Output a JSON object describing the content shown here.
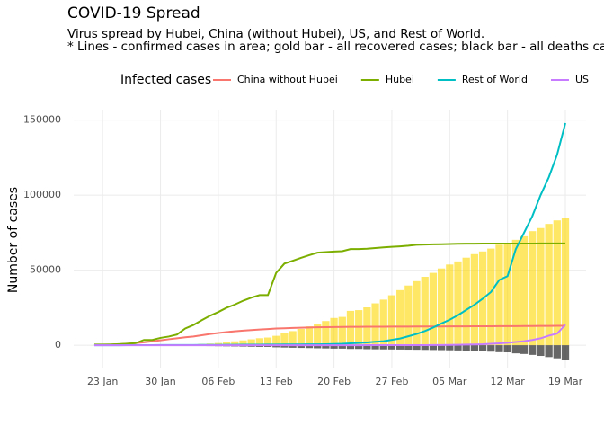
{
  "chart_data": {
    "type": "line",
    "title": "COVID-19 Spread",
    "subtitle": [
      "Virus spread by Hubei, China (without Hubei), US, and Rest of World.",
      "* Lines - confirmed cases in area; gold bar - all recovered cases; black bar - all deaths cases."
    ],
    "y_label": "Number of cases",
    "legend_title": "Infected cases",
    "legend_position": "top",
    "grid": true,
    "x": [
      "22 Jan",
      "23 Jan",
      "24 Jan",
      "25 Jan",
      "26 Jan",
      "27 Jan",
      "28 Jan",
      "29 Jan",
      "30 Jan",
      "31 Jan",
      "01 Feb",
      "02 Feb",
      "03 Feb",
      "04 Feb",
      "05 Feb",
      "06 Feb",
      "07 Feb",
      "08 Feb",
      "09 Feb",
      "10 Feb",
      "11 Feb",
      "12 Feb",
      "13 Feb",
      "14 Feb",
      "15 Feb",
      "16 Feb",
      "17 Feb",
      "18 Feb",
      "19 Feb",
      "20 Feb",
      "21 Feb",
      "22 Feb",
      "23 Feb",
      "24 Feb",
      "25 Feb",
      "26 Feb",
      "27 Feb",
      "28 Feb",
      "29 Feb",
      "01 Mar",
      "02 Mar",
      "03 Mar",
      "04 Mar",
      "05 Mar",
      "06 Mar",
      "07 Mar",
      "08 Mar",
      "09 Mar",
      "10 Mar",
      "11 Mar",
      "12 Mar",
      "13 Mar",
      "14 Mar",
      "15 Mar",
      "16 Mar",
      "17 Mar",
      "18 Mar",
      "19 Mar"
    ],
    "xticks": [
      "23 Jan",
      "30 Jan",
      "06 Feb",
      "13 Feb",
      "20 Feb",
      "27 Feb",
      "05 Mar",
      "12 Mar",
      "19 Mar"
    ],
    "ylim": [
      -15500,
      157000
    ],
    "yticks": [
      0,
      50000,
      100000,
      150000
    ],
    "bars": [
      {
        "color": "#ffd700",
        "values": [
          28,
          30,
          36,
          39,
          52,
          61,
          107,
          126,
          143,
          222,
          284,
          472,
          623,
          852,
          1124,
          1487,
          2011,
          2616,
          3244,
          3946,
          4683,
          5150,
          6295,
          8058,
          9395,
          10865,
          12583,
          14352,
          16121,
          18177,
          18890,
          22886,
          23394,
          25227,
          27905,
          30384,
          33277,
          36711,
          39782,
          42716,
          45602,
          48228,
          51170,
          53796,
          55865,
          58358,
          60694,
          62494,
          64404,
          67003,
          68324,
          70251,
          72624,
          76034,
          78088,
          80840,
          83207,
          84962
        ]
      },
      {
        "color": "#000000",
        "values": [
          -17,
          -18,
          -26,
          -42,
          -56,
          -82,
          -131,
          -133,
          -171,
          -213,
          -259,
          -362,
          -426,
          -492,
          -564,
          -634,
          -719,
          -806,
          -906,
          -1013,
          -1113,
          -1118,
          -1371,
          -1523,
          -1666,
          -1770,
          -1868,
          -2007,
          -2122,
          -2247,
          -2251,
          -2458,
          -2469,
          -2629,
          -2708,
          -2770,
          -2814,
          -2872,
          -2941,
          -2996,
          -3085,
          -3160,
          -3254,
          -3348,
          -3460,
          -3558,
          -3802,
          -3988,
          -4262,
          -4615,
          -4720,
          -5404,
          -5819,
          -6440,
          -7126,
          -7905,
          -8733,
          -9867
        ]
      }
    ],
    "series": [
      {
        "name": "China without Hubei",
        "color": "#F8766D",
        "values": [
          104,
          200,
          370,
          680,
          1060,
          1480,
          1980,
          2610,
          3260,
          4010,
          4630,
          5310,
          5860,
          6690,
          7460,
          8180,
          8760,
          9310,
          9740,
          10120,
          10490,
          10780,
          11120,
          11330,
          11540,
          11710,
          11860,
          11970,
          12070,
          12150,
          12220,
          12270,
          12300,
          12330,
          12350,
          12380,
          12400,
          12430,
          12450,
          12470,
          12490,
          12510,
          12530,
          12550,
          12580,
          12600,
          12640,
          12650,
          12670,
          12690,
          12720,
          12750,
          12780,
          12820,
          12850,
          12880,
          12920,
          12970
        ]
      },
      {
        "name": "Hubei",
        "color": "#7CAE00",
        "values": [
          444,
          444,
          549,
          761,
          1058,
          1423,
          3554,
          3554,
          4903,
          5806,
          7153,
          11177,
          13522,
          16678,
          19665,
          22112,
          24953,
          27100,
          29631,
          31728,
          33366,
          33366,
          48206,
          54406,
          56249,
          58182,
          59989,
          61682,
          62031,
          62442,
          62662,
          64084,
          64084,
          64287,
          64786,
          65187,
          65596,
          65914,
          66337,
          66907,
          67103,
          67217,
          67332,
          67466,
          67592,
          67666,
          67707,
          67743,
          67760,
          67773,
          67781,
          67786,
          67790,
          67794,
          67798,
          67799,
          67800,
          67800
        ]
      },
      {
        "name": "Rest of World",
        "color": "#00BFC4",
        "values": [
          7,
          11,
          20,
          30,
          45,
          60,
          80,
          100,
          120,
          150,
          160,
          170,
          180,
          200,
          220,
          250,
          280,
          320,
          340,
          380,
          390,
          430,
          440,
          490,
          500,
          520,
          600,
          620,
          700,
          830,
          990,
          1300,
          1600,
          1900,
          2300,
          2700,
          3600,
          4500,
          6000,
          7500,
          9500,
          11800,
          14500,
          17000,
          20000,
          23500,
          27000,
          31000,
          35500,
          43500,
          46000,
          64000,
          75000,
          86000,
          100000,
          112000,
          127000,
          148000
        ]
      },
      {
        "name": "US",
        "color": "#C77CFF",
        "values": [
          1,
          1,
          2,
          2,
          5,
          5,
          5,
          5,
          5,
          6,
          8,
          8,
          11,
          11,
          11,
          11,
          11,
          11,
          11,
          11,
          12,
          12,
          13,
          13,
          13,
          13,
          13,
          13,
          13,
          13,
          15,
          15,
          15,
          51,
          51,
          57,
          58,
          60,
          68,
          75,
          100,
          120,
          160,
          230,
          320,
          430,
          540,
          700,
          1000,
          1300,
          1660,
          2180,
          2730,
          3500,
          4630,
          6420,
          7780,
          13700
        ]
      }
    ]
  }
}
